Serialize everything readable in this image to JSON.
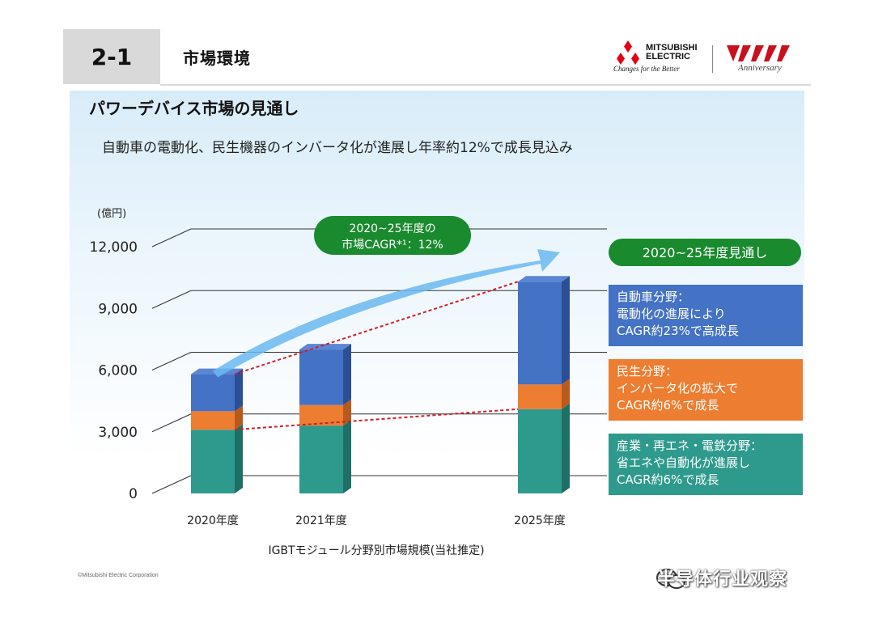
{
  "header": {
    "section_number": "2-1",
    "section_title": "市場環境",
    "logo_name_line1": "MITSUBISHI",
    "logo_name_line2": "ELECTRIC",
    "logo_tagline": "Changes for the Better",
    "anniversary_text": "Anniversary"
  },
  "panel": {
    "title": "パワーデバイス市場の見通し",
    "subtitle": "自動車の電動化、民生機器のインバータ化が進展し年率約12%で成長見込み",
    "copyright": "©Mitsubishi Electric Corporation"
  },
  "colors": {
    "automotive": "#4472c4",
    "consumer": "#ed7d31",
    "industrial": "#2e9a8e",
    "callout_green": "#1a8a2e",
    "arrow": "#6ab8f0",
    "trend_line": "#d0202a"
  },
  "chart_data": {
    "type": "bar",
    "stacked": true,
    "unit_label": "(億円)",
    "categories": [
      "2020年度",
      "2021年度",
      "2025年度"
    ],
    "xlabel": "IGBTモジュール分野別市場規模(当社推定)",
    "ylim": [
      0,
      12000
    ],
    "yticks": [
      "0",
      "3,000",
      "6,000",
      "9,000",
      "12,000"
    ],
    "ytick_values": [
      0,
      3000,
      6000,
      9000,
      12000
    ],
    "series": [
      {
        "key": "industrial",
        "values": [
          3100,
          3300,
          4100
        ]
      },
      {
        "key": "consumer",
        "values": [
          900,
          1000,
          1200
        ]
      },
      {
        "key": "automotive",
        "values": [
          1800,
          2700,
          5000
        ]
      }
    ],
    "cagr_callout": {
      "line1": "2020~25年度の",
      "line2": "市場CAGR*¹：12%"
    },
    "outlook_title": "2020~25年度見通し",
    "legend": [
      {
        "key": "automotive",
        "lines": [
          "自動車分野：",
          "電動化の進展により",
          "CAGR約23%で高成長"
        ]
      },
      {
        "key": "consumer",
        "lines": [
          "民生分野：",
          "インバータ化の拡大で",
          "CAGR約6%で成長"
        ]
      },
      {
        "key": "industrial",
        "lines": [
          "産業・再エネ・電鉄分野：",
          "省エネや自動化が進展し",
          "CAGR約6%で成長"
        ]
      }
    ]
  },
  "watermark": {
    "text": "半导体行业观察"
  }
}
